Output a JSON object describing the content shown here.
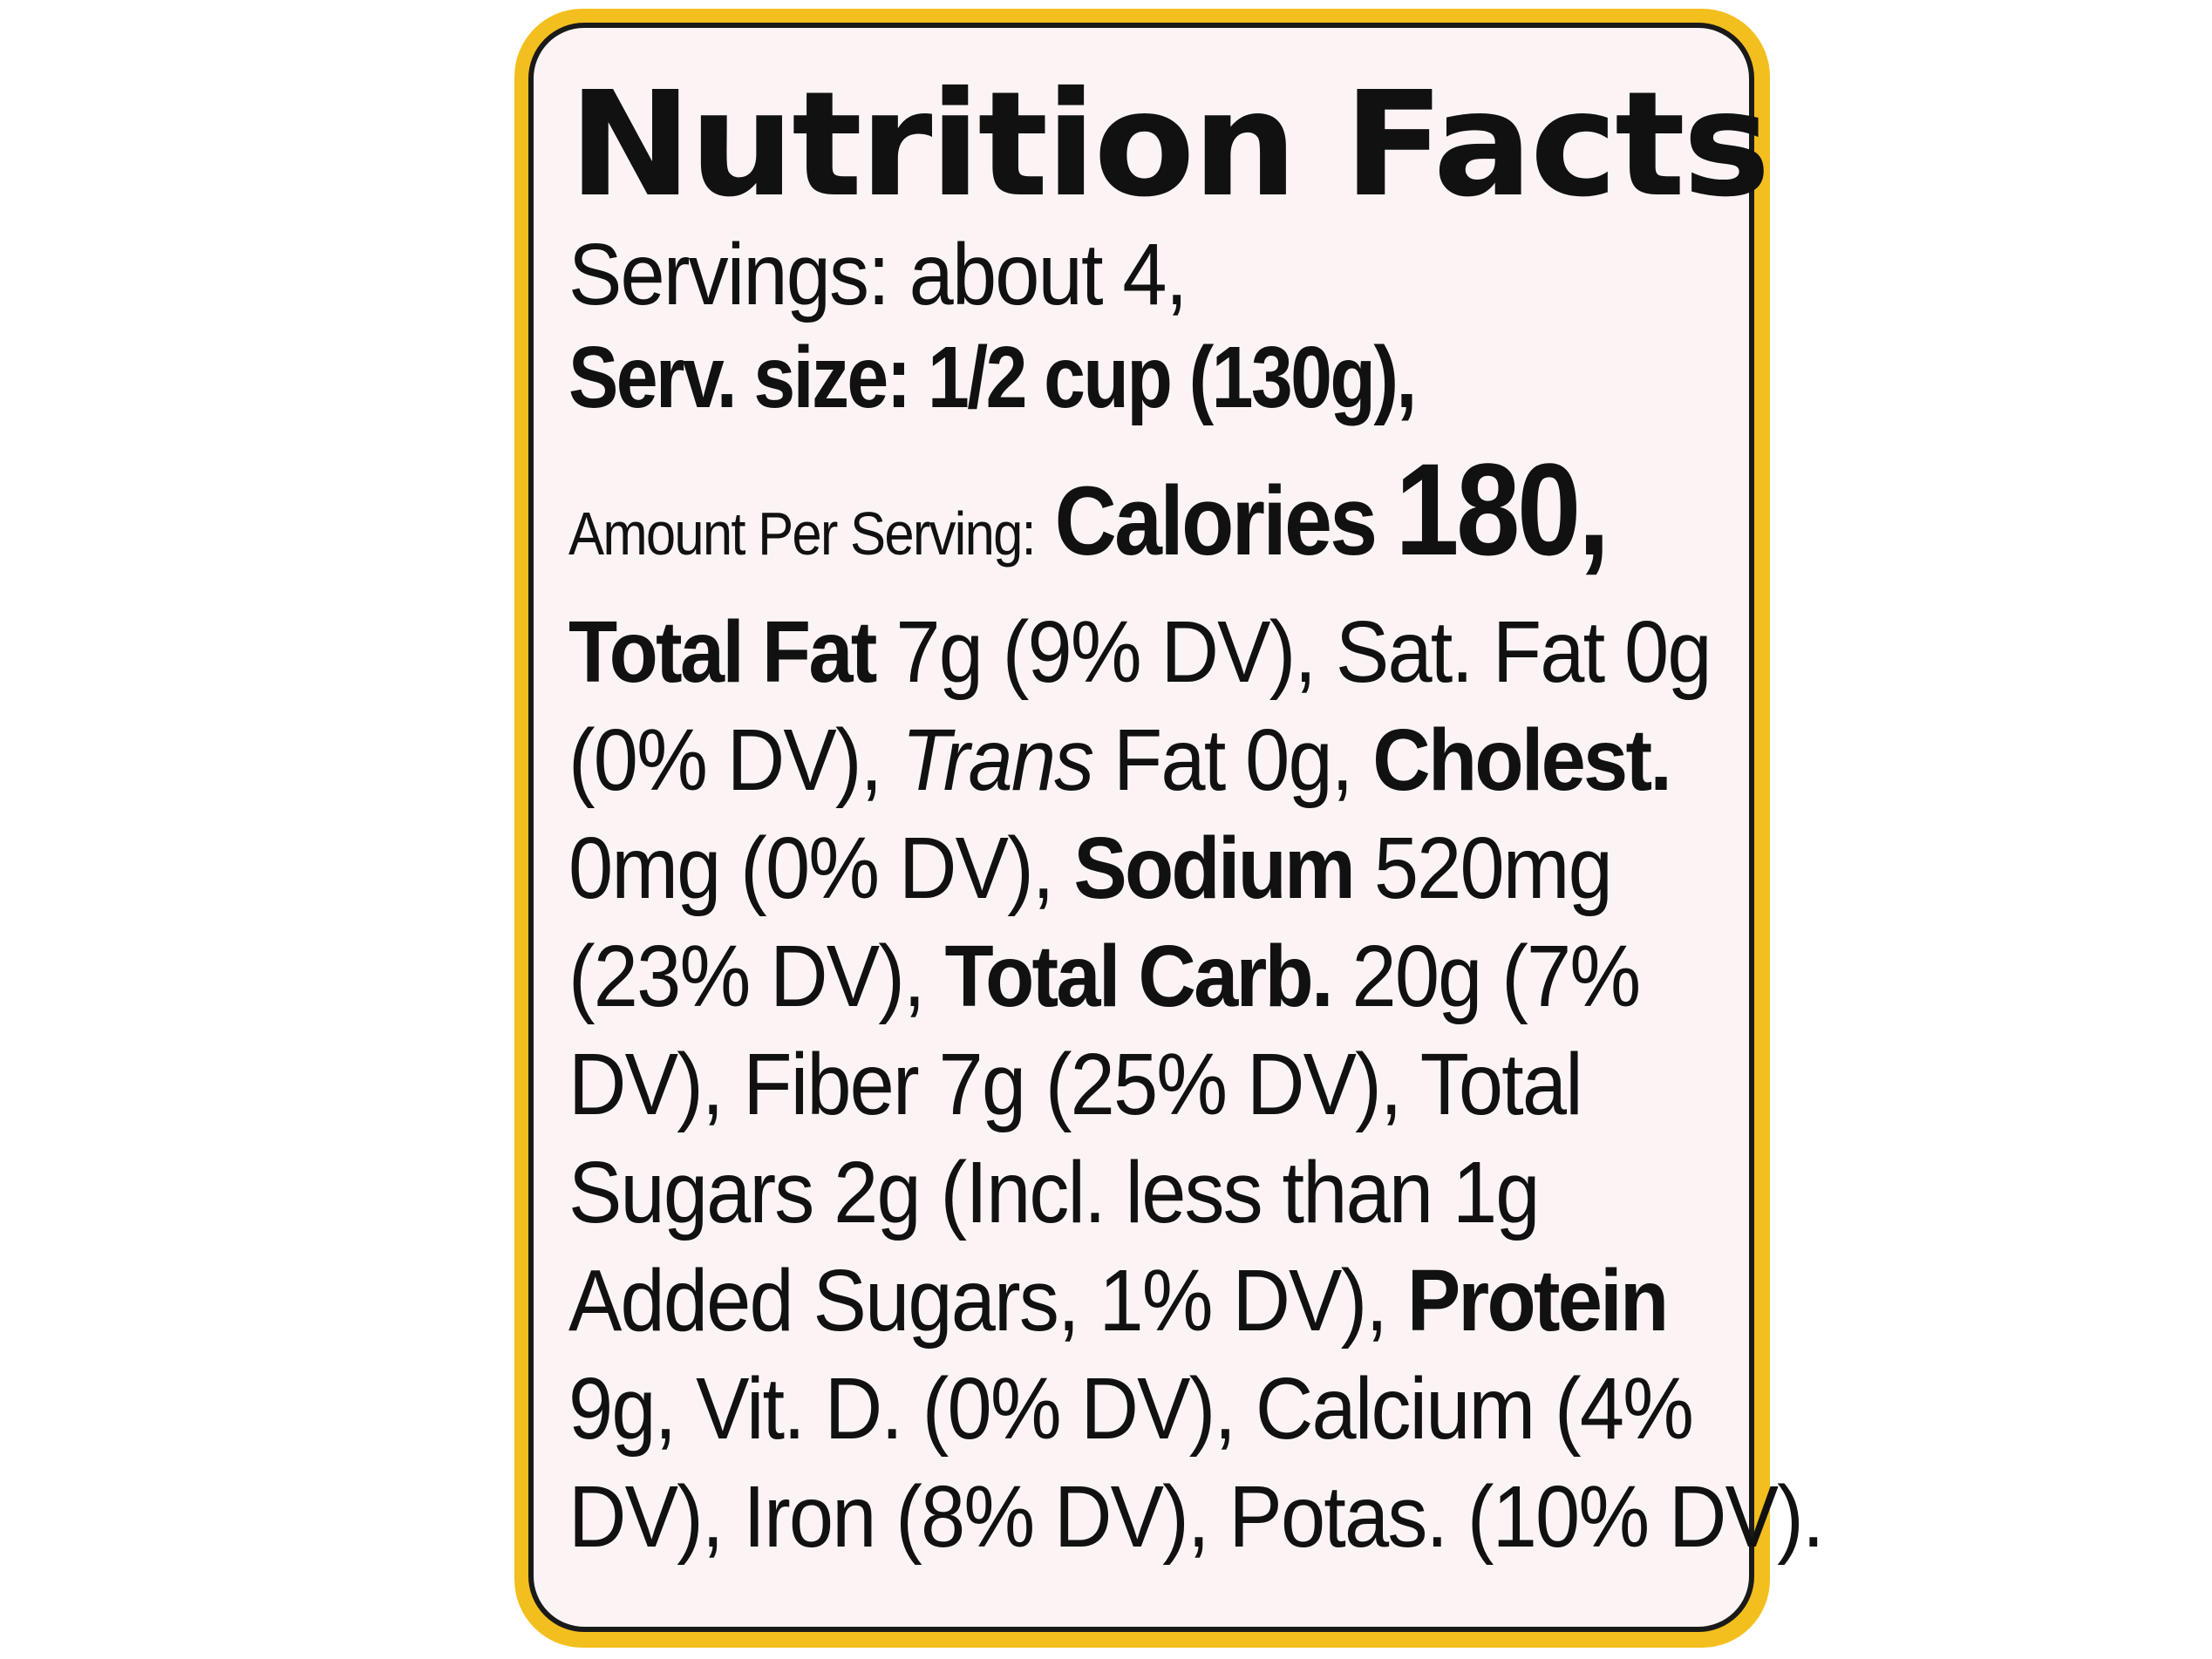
{
  "label": {
    "title": "Nutrition Facts",
    "servings": "Servings: about 4,",
    "serving_size": "Serv. size: 1/2 cup (130g),",
    "amount_per_serving": "Amount Per Serving:",
    "calories_label": "Calories",
    "calories_value": "180,"
  },
  "body": {
    "l1_a": "Total Fat",
    "l1_b": " 7g (9% DV), Sat. Fat 0g",
    "l2_a": "(0% DV), ",
    "l2_b": "Trans",
    "l2_c": " Fat 0g, ",
    "l2_d": "Cholest.",
    "l3_a": "0mg (0% DV), ",
    "l3_b": "Sodium",
    "l3_c": " 520mg",
    "l4_a": "(23% DV), ",
    "l4_b": "Total Carb.",
    "l4_c": " 20g (7%",
    "l5": "DV), Fiber 7g (25% DV), Total",
    "l6": "Sugars 2g (Incl. less than 1g",
    "l7_a": "Added Sugars, 1% DV), ",
    "l7_b": "Protein",
    "l8": "9g, Vit. D. (0% DV), Calcium (4%",
    "l9": "DV), Iron (8% DV), Potas. (10% DV)."
  },
  "colors": {
    "frame": "#f3bf1e",
    "panel": "#fcf4f4",
    "text": "#111111"
  }
}
